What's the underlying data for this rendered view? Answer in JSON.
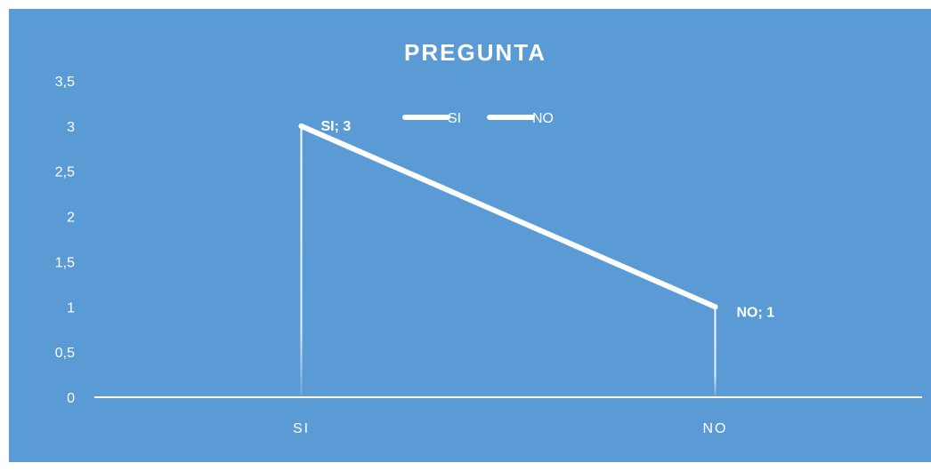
{
  "colors": {
    "background": "#5b9bd5",
    "line": "#ffffff",
    "text": "#ffffff"
  },
  "chart_data": {
    "type": "line",
    "title": "PREGUNTA",
    "categories": [
      "SI",
      "NO"
    ],
    "series": [
      {
        "name": "SI",
        "values": [
          3,
          1
        ]
      }
    ],
    "legend_entries": [
      "SI",
      "NO"
    ],
    "legend_position": "top",
    "data_labels": [
      "SI; 3",
      "NO; 1"
    ],
    "y_ticks": [
      "0",
      "0,5",
      "1",
      "1,5",
      "2",
      "2,5",
      "3",
      "3,5"
    ],
    "ylim": [
      0,
      3.5
    ],
    "drop_lines": true,
    "grid": false
  }
}
